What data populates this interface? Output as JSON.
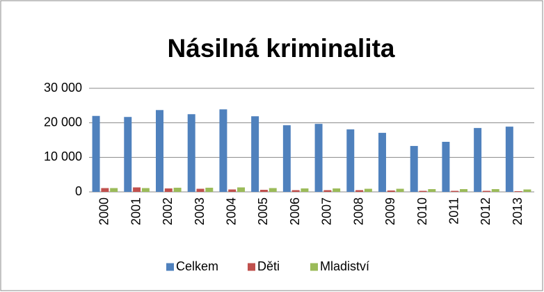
{
  "chart_data": {
    "type": "bar",
    "title": "Násilná kriminalita",
    "categories": [
      "2000",
      "2001",
      "2002",
      "2003",
      "2004",
      "2005",
      "2006",
      "2007",
      "2008",
      "2009",
      "2010",
      "2011",
      "2012",
      "2013"
    ],
    "series": [
      {
        "name": "Celkem",
        "color": "#4f81bd",
        "values": [
          22000,
          21700,
          23700,
          22500,
          23900,
          21900,
          19300,
          19700,
          18100,
          17100,
          13300,
          14500,
          18500,
          18900
        ]
      },
      {
        "name": "Děti",
        "color": "#c0504d",
        "values": [
          1100,
          1300,
          1000,
          900,
          700,
          600,
          500,
          500,
          500,
          400,
          300,
          300,
          300,
          200
        ]
      },
      {
        "name": "Mladiství",
        "color": "#9bbb59",
        "values": [
          1100,
          1100,
          1200,
          1200,
          1300,
          1100,
          1000,
          1000,
          900,
          900,
          800,
          800,
          800,
          700
        ]
      }
    ],
    "ylim": [
      0,
      30000
    ],
    "yticks": [
      0,
      {
        "value": 10000,
        "label": "10 000"
      },
      {
        "value": 20000,
        "label": "20 000"
      },
      {
        "value": 30000,
        "label": "30 000"
      }
    ],
    "grid": true,
    "legend": "bottom"
  }
}
